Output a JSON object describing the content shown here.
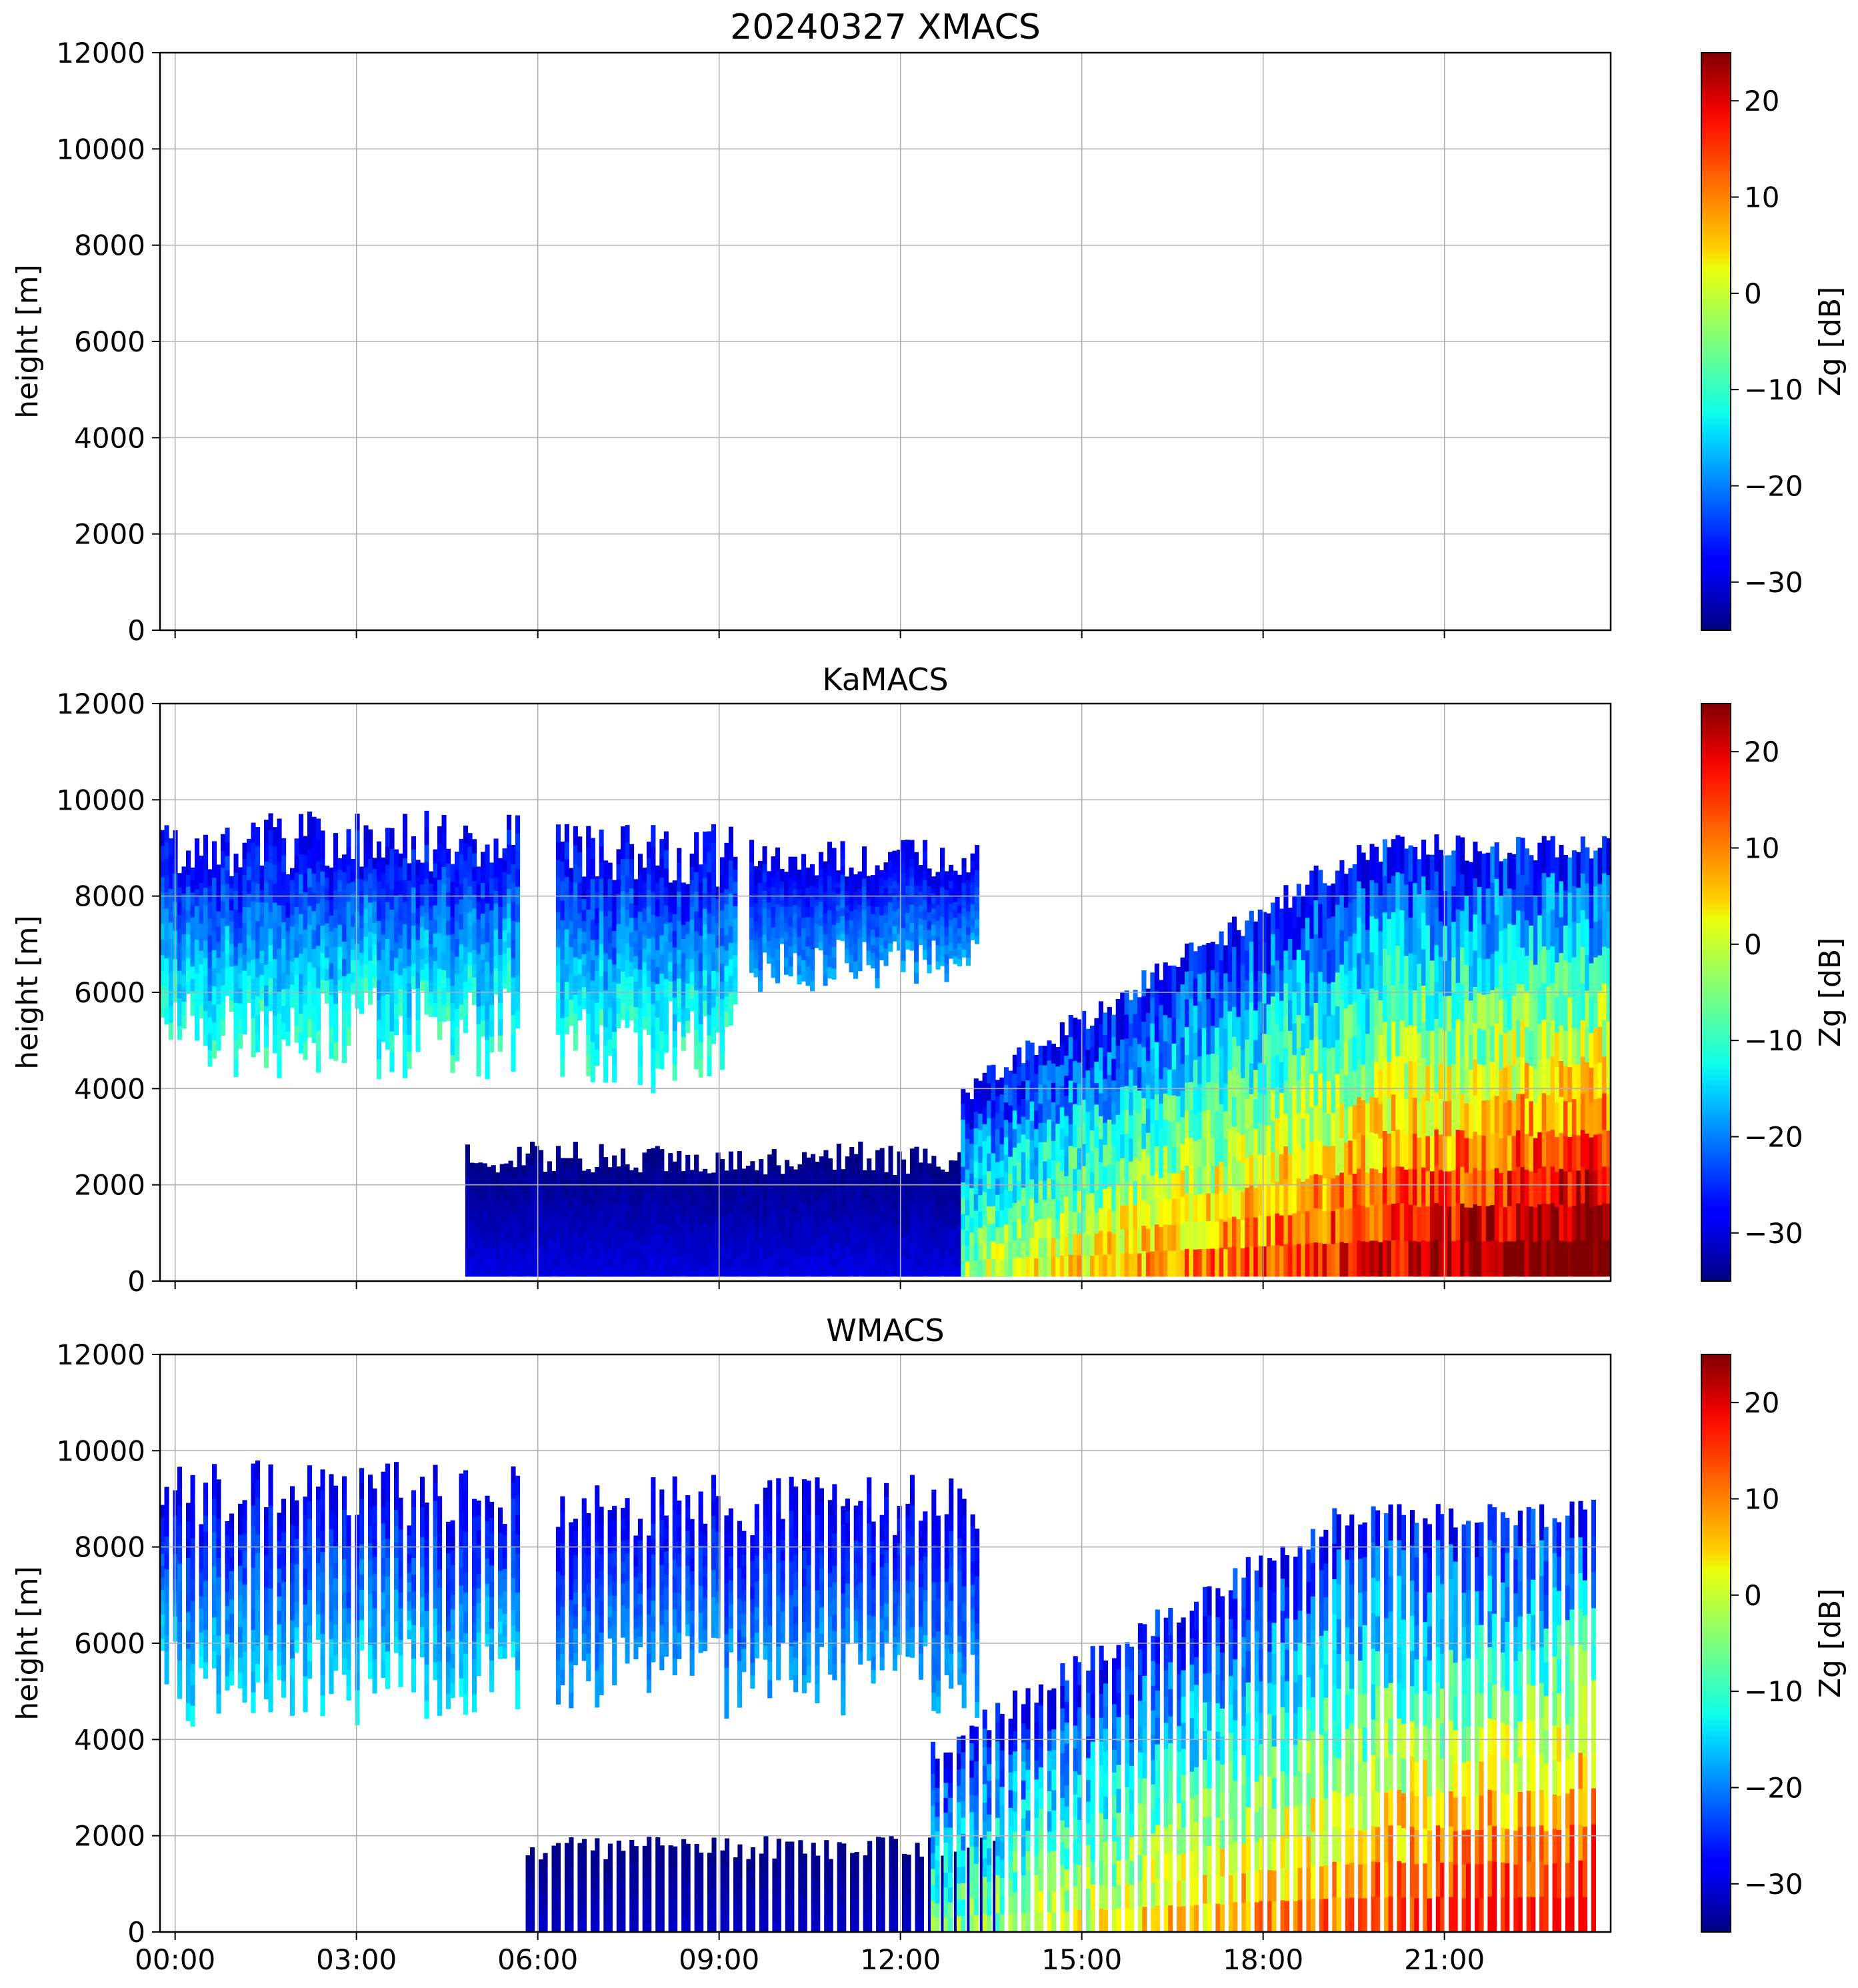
{
  "chart_data": [
    {
      "type": "heatmap",
      "title": "20240327 XMACS",
      "xlabel": "",
      "ylabel": "height [m]",
      "xlim": [
        -0.25,
        23.75
      ],
      "ylim": [
        0,
        12000
      ],
      "yticks": [
        0,
        2000,
        4000,
        6000,
        8000,
        10000,
        12000
      ],
      "xticks": [
        "00:00",
        "03:00",
        "06:00",
        "09:00",
        "12:00",
        "15:00",
        "18:00",
        "21:00"
      ],
      "xtick_hours": [
        0,
        3,
        6,
        9,
        12,
        15,
        18,
        21
      ],
      "show_xticklabels": false,
      "grid": true,
      "colorbar": {
        "label": "Zg [dB]",
        "range": [
          -35,
          25
        ],
        "ticks": [
          -30,
          -20,
          -10,
          0,
          10,
          20
        ],
        "colormap": "jet"
      },
      "echo_regions": []
    },
    {
      "type": "heatmap",
      "title": "KaMACS",
      "xlabel": "",
      "ylabel": "height [m]",
      "xlim": [
        -0.25,
        23.75
      ],
      "ylim": [
        0,
        12000
      ],
      "yticks": [
        0,
        2000,
        4000,
        6000,
        8000,
        10000,
        12000
      ],
      "xticks": [
        "00:00",
        "03:00",
        "06:00",
        "09:00",
        "12:00",
        "15:00",
        "18:00",
        "21:00"
      ],
      "xtick_hours": [
        0,
        3,
        6,
        9,
        12,
        15,
        18,
        21
      ],
      "show_xticklabels": false,
      "grid": true,
      "colorbar": {
        "label": "Zg [dB]",
        "range": [
          -35,
          25
        ],
        "ticks": [
          -30,
          -20,
          -10,
          0,
          10,
          20
        ],
        "colormap": "jet"
      },
      "echo_regions": [
        {
          "t0": -0.25,
          "t1": 5.7,
          "base_m": 4200,
          "top_m": 9800,
          "zg_range_dB": [
            -30,
            -5
          ]
        },
        {
          "t0": 6.3,
          "t1": 9.3,
          "base_m": 3900,
          "top_m": 9500,
          "zg_range_dB": [
            -30,
            -5
          ]
        },
        {
          "t0": 9.5,
          "t1": 13.3,
          "base_m": 6000,
          "top_m": 9200,
          "zg_range_dB": [
            -30,
            -15
          ]
        },
        {
          "t0": 4.8,
          "t1": 13.8,
          "base_m": 100,
          "top_m": 2900,
          "zg_range_dB": [
            -35,
            -28
          ]
        },
        {
          "t0": 13.0,
          "t1": 23.75,
          "base_m": 100,
          "top_m": 9300,
          "zg_range_dB": [
            -30,
            25
          ]
        }
      ]
    },
    {
      "type": "heatmap",
      "title": "WMACS",
      "xlabel": "",
      "ylabel": "height [m]",
      "xlim": [
        -0.25,
        23.75
      ],
      "ylim": [
        0,
        12000
      ],
      "yticks": [
        0,
        2000,
        4000,
        6000,
        8000,
        10000,
        12000
      ],
      "xticks": [
        "00:00",
        "03:00",
        "06:00",
        "09:00",
        "12:00",
        "15:00",
        "18:00",
        "21:00"
      ],
      "xtick_hours": [
        0,
        3,
        6,
        9,
        12,
        15,
        18,
        21
      ],
      "show_xticklabels": true,
      "grid": true,
      "colorbar": {
        "label": "Zg [dB]",
        "range": [
          -35,
          25
        ],
        "ticks": [
          -30,
          -20,
          -10,
          0,
          10,
          20
        ],
        "colormap": "jet"
      },
      "echo_regions": [
        {
          "t0": -0.25,
          "t1": 5.7,
          "base_m": 4200,
          "top_m": 9800,
          "zg_range_dB": [
            -30,
            -10
          ],
          "banded": true
        },
        {
          "t0": 6.3,
          "t1": 13.3,
          "base_m": 4400,
          "top_m": 9500,
          "zg_range_dB": [
            -30,
            -15
          ],
          "banded": true
        },
        {
          "t0": 5.8,
          "t1": 13.6,
          "base_m": 0,
          "top_m": 2000,
          "zg_range_dB": [
            -35,
            -30
          ],
          "banded": true
        },
        {
          "t0": 12.5,
          "t1": 23.5,
          "base_m": 0,
          "top_m": 9000,
          "zg_range_dB": [
            -30,
            18
          ],
          "banded": true
        }
      ]
    }
  ]
}
